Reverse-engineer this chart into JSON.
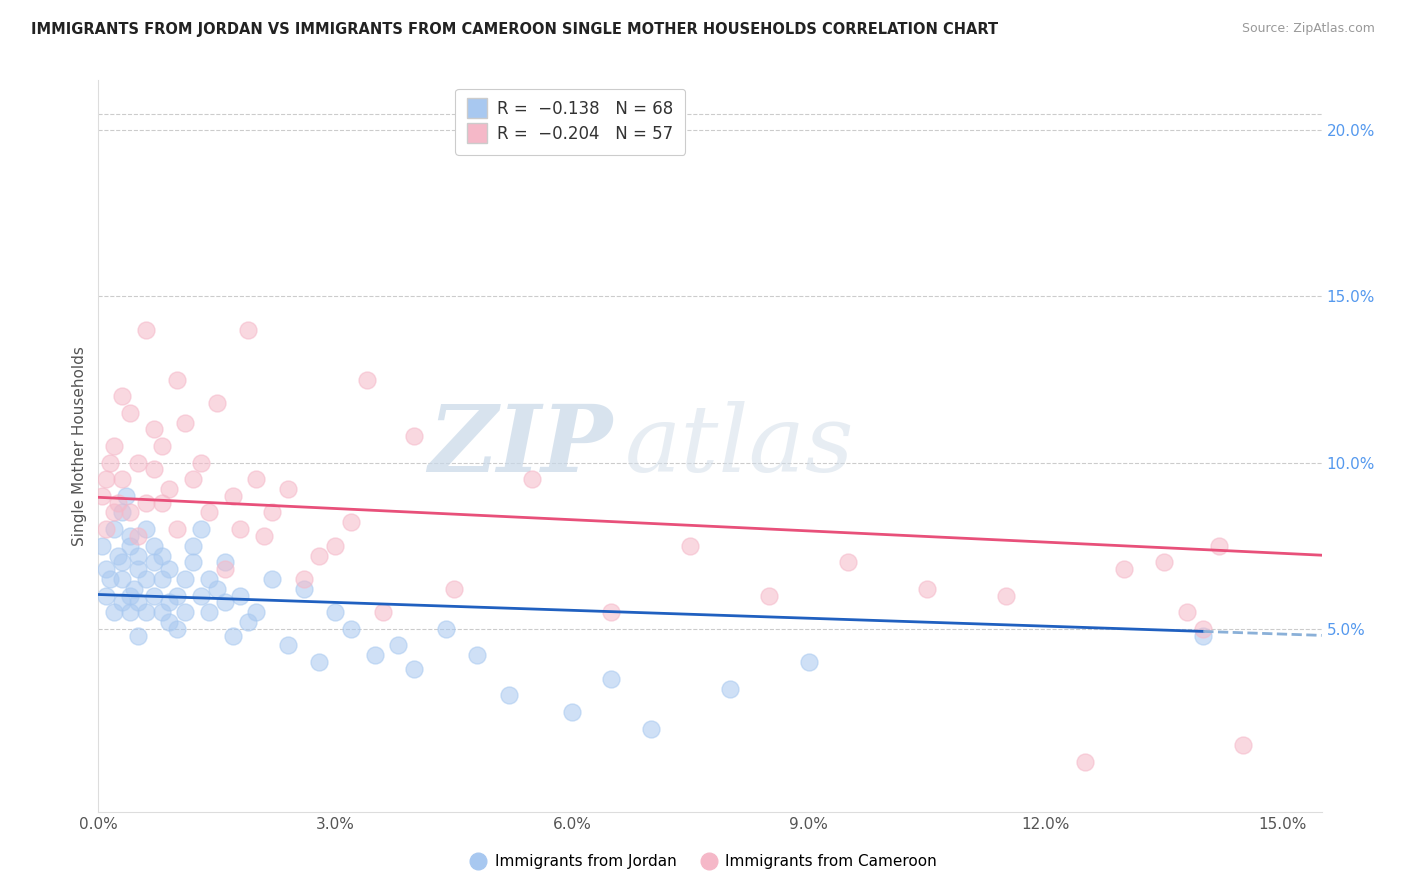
{
  "title": "IMMIGRANTS FROM JORDAN VS IMMIGRANTS FROM CAMEROON SINGLE MOTHER HOUSEHOLDS CORRELATION CHART",
  "source": "Source: ZipAtlas.com",
  "ylabel": "Single Mother Households",
  "xlabel_jordan": "Immigrants from Jordan",
  "xlabel_cameroon": "Immigrants from Cameroon",
  "r_jordan": -0.138,
  "n_jordan": 68,
  "r_cameroon": -0.204,
  "n_cameroon": 57,
  "x_min": 0.0,
  "x_max": 0.155,
  "y_min": -0.005,
  "y_max": 0.215,
  "right_yticks": [
    0.05,
    0.1,
    0.15,
    0.2
  ],
  "right_yticklabels": [
    "5.0%",
    "10.0%",
    "15.0%",
    "20.0%"
  ],
  "xticks": [
    0.0,
    0.03,
    0.06,
    0.09,
    0.12,
    0.15
  ],
  "xticklabels": [
    "0.0%",
    "3.0%",
    "6.0%",
    "9.0%",
    "12.0%",
    "15.0%"
  ],
  "color_jordan": "#a8c8f0",
  "color_cameroon": "#f5b8c8",
  "line_color_jordan_solid": "#2060c0",
  "line_color_jordan_dash": "#8ab0d8",
  "line_color_cameroon": "#e8507a",
  "watermark_zip": "ZIP",
  "watermark_atlas": "atlas",
  "jordan_x": [
    0.0005,
    0.001,
    0.001,
    0.0015,
    0.002,
    0.002,
    0.0025,
    0.003,
    0.003,
    0.003,
    0.003,
    0.0035,
    0.004,
    0.004,
    0.004,
    0.004,
    0.0045,
    0.005,
    0.005,
    0.005,
    0.005,
    0.006,
    0.006,
    0.006,
    0.007,
    0.007,
    0.007,
    0.008,
    0.008,
    0.008,
    0.009,
    0.009,
    0.009,
    0.01,
    0.01,
    0.011,
    0.011,
    0.012,
    0.012,
    0.013,
    0.013,
    0.014,
    0.014,
    0.015,
    0.016,
    0.016,
    0.017,
    0.018,
    0.019,
    0.02,
    0.022,
    0.024,
    0.026,
    0.028,
    0.03,
    0.032,
    0.035,
    0.038,
    0.04,
    0.044,
    0.048,
    0.052,
    0.06,
    0.065,
    0.07,
    0.08,
    0.09,
    0.14
  ],
  "jordan_y": [
    0.075,
    0.068,
    0.06,
    0.065,
    0.055,
    0.08,
    0.072,
    0.085,
    0.058,
    0.07,
    0.065,
    0.09,
    0.06,
    0.075,
    0.055,
    0.078,
    0.062,
    0.068,
    0.048,
    0.072,
    0.058,
    0.065,
    0.08,
    0.055,
    0.07,
    0.075,
    0.06,
    0.055,
    0.065,
    0.072,
    0.058,
    0.068,
    0.052,
    0.06,
    0.05,
    0.065,
    0.055,
    0.07,
    0.075,
    0.06,
    0.08,
    0.055,
    0.065,
    0.062,
    0.058,
    0.07,
    0.048,
    0.06,
    0.052,
    0.055,
    0.065,
    0.045,
    0.062,
    0.04,
    0.055,
    0.05,
    0.042,
    0.045,
    0.038,
    0.05,
    0.042,
    0.03,
    0.025,
    0.035,
    0.02,
    0.032,
    0.04,
    0.048
  ],
  "cameroon_x": [
    0.0005,
    0.001,
    0.001,
    0.0015,
    0.002,
    0.002,
    0.0025,
    0.003,
    0.003,
    0.004,
    0.004,
    0.005,
    0.005,
    0.006,
    0.006,
    0.007,
    0.007,
    0.008,
    0.008,
    0.009,
    0.01,
    0.01,
    0.011,
    0.012,
    0.013,
    0.014,
    0.015,
    0.016,
    0.017,
    0.018,
    0.019,
    0.02,
    0.021,
    0.022,
    0.024,
    0.026,
    0.028,
    0.03,
    0.032,
    0.034,
    0.036,
    0.04,
    0.045,
    0.055,
    0.065,
    0.075,
    0.085,
    0.095,
    0.105,
    0.115,
    0.125,
    0.13,
    0.135,
    0.138,
    0.14,
    0.142,
    0.145
  ],
  "cameroon_y": [
    0.09,
    0.095,
    0.08,
    0.1,
    0.085,
    0.105,
    0.088,
    0.12,
    0.095,
    0.115,
    0.085,
    0.1,
    0.078,
    0.14,
    0.088,
    0.098,
    0.11,
    0.088,
    0.105,
    0.092,
    0.125,
    0.08,
    0.112,
    0.095,
    0.1,
    0.085,
    0.118,
    0.068,
    0.09,
    0.08,
    0.14,
    0.095,
    0.078,
    0.085,
    0.092,
    0.065,
    0.072,
    0.075,
    0.082,
    0.125,
    0.055,
    0.108,
    0.062,
    0.095,
    0.055,
    0.075,
    0.06,
    0.07,
    0.062,
    0.06,
    0.01,
    0.068,
    0.07,
    0.055,
    0.05,
    0.075,
    0.015
  ]
}
